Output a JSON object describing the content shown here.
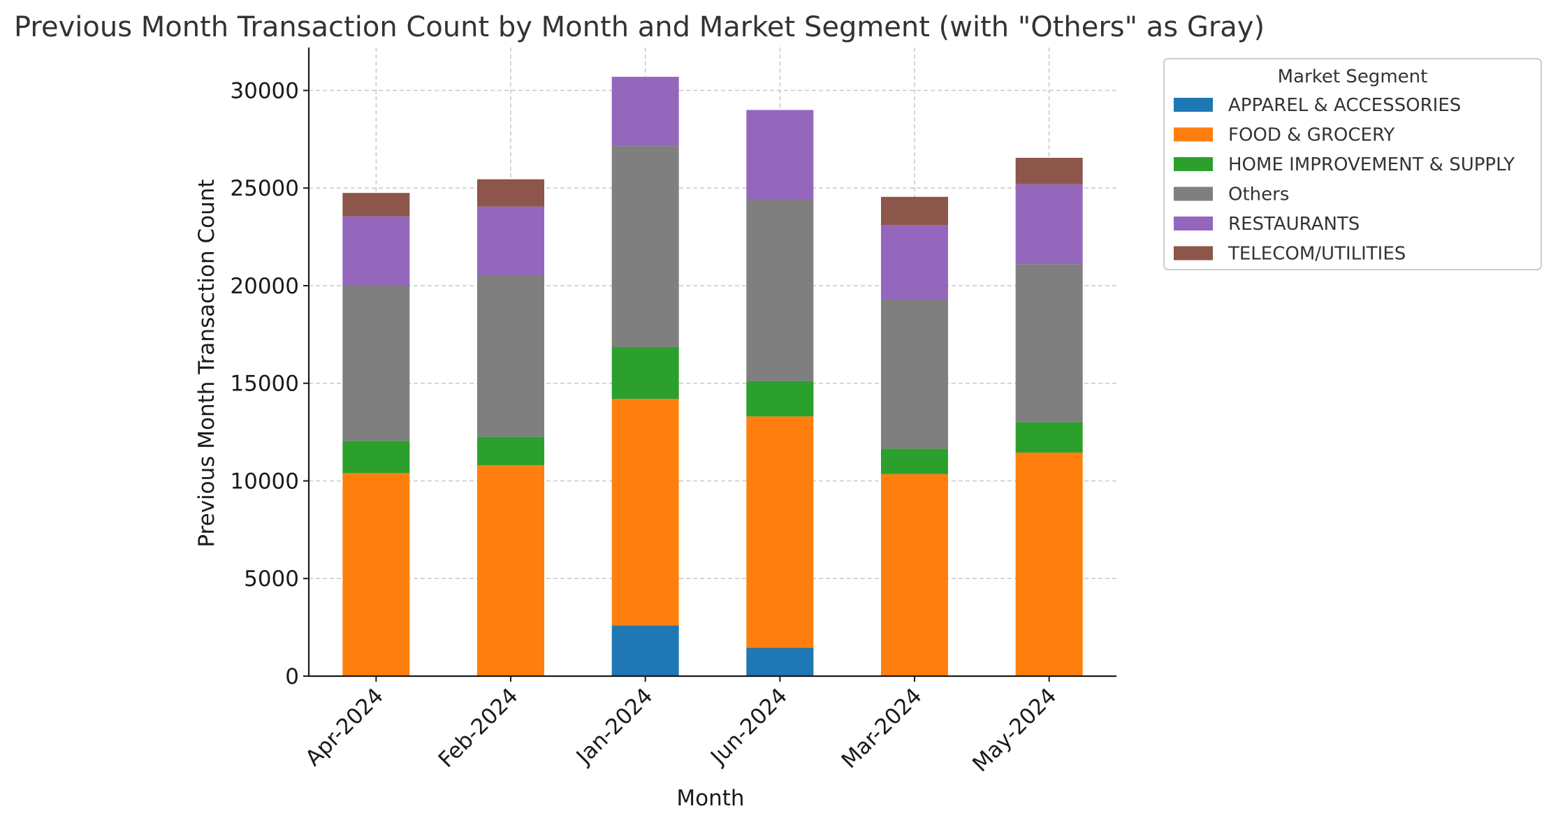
{
  "chart_data": {
    "type": "bar",
    "stacked": true,
    "title": "Previous Month Transaction Count by Month and Market Segment (with \"Others\" as Gray)",
    "xlabel": "Month",
    "ylabel": "Previous Month Transaction Count",
    "categories": [
      "Apr-2024",
      "Feb-2024",
      "Jan-2024",
      "Jun-2024",
      "Mar-2024",
      "May-2024"
    ],
    "ylim": [
      0,
      32200
    ],
    "yticks": [
      0,
      5000,
      10000,
      15000,
      20000,
      25000,
      30000
    ],
    "ytick_labels": [
      "0",
      "5000",
      "10000",
      "15000",
      "20000",
      "25000",
      "30000"
    ],
    "grid": true,
    "legend": {
      "title": "Market Segment",
      "placement": "outside-right-top"
    },
    "series": [
      {
        "name": "APPAREL & ACCESSORIES",
        "color": "#1f77b4",
        "values": [
          0,
          0,
          2600,
          1450,
          0,
          0
        ]
      },
      {
        "name": "FOOD & GROCERY",
        "color": "#ff7f0e",
        "values": [
          10400,
          10800,
          11600,
          11850,
          10350,
          11450
        ]
      },
      {
        "name": "HOME IMPROVEMENT & SUPPLY",
        "color": "#2ca02c",
        "values": [
          1650,
          1450,
          2650,
          1800,
          1300,
          1550
        ]
      },
      {
        "name": "Others",
        "color": "#7f7f7f",
        "values": [
          7950,
          8250,
          10300,
          9300,
          7650,
          8100
        ]
      },
      {
        "name": "RESTAURANTS",
        "color": "#9467bd",
        "values": [
          3550,
          3550,
          3550,
          4600,
          3800,
          4100
        ]
      },
      {
        "name": "TELECOM/UTILITIES",
        "color": "#8c564b",
        "values": [
          1200,
          1400,
          0,
          0,
          1450,
          1350
        ]
      }
    ]
  }
}
